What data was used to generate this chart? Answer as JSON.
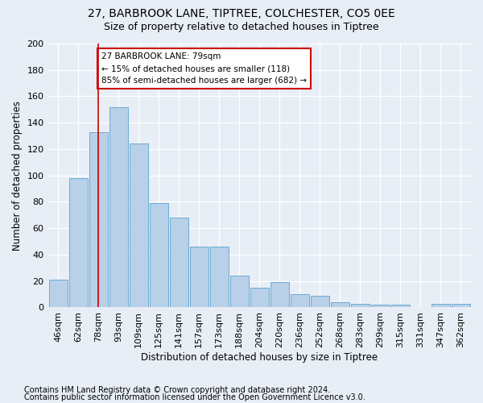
{
  "title1": "27, BARBROOK LANE, TIPTREE, COLCHESTER, CO5 0EE",
  "title2": "Size of property relative to detached houses in Tiptree",
  "xlabel": "Distribution of detached houses by size in Tiptree",
  "ylabel": "Number of detached properties",
  "categories": [
    "46sqm",
    "62sqm",
    "78sqm",
    "93sqm",
    "109sqm",
    "125sqm",
    "141sqm",
    "157sqm",
    "173sqm",
    "188sqm",
    "204sqm",
    "220sqm",
    "236sqm",
    "252sqm",
    "268sqm",
    "283sqm",
    "299sqm",
    "315sqm",
    "331sqm",
    "347sqm",
    "362sqm"
  ],
  "values": [
    21,
    98,
    133,
    152,
    124,
    79,
    68,
    46,
    46,
    24,
    15,
    19,
    10,
    9,
    4,
    3,
    2,
    2,
    0,
    3,
    3
  ],
  "bar_color": "#b8d0e8",
  "bar_edge_color": "#6aaad4",
  "vline_x_index": 2,
  "vline_color": "#cc0000",
  "annotation_text": "27 BARBROOK LANE: 79sqm\n← 15% of detached houses are smaller (118)\n85% of semi-detached houses are larger (682) →",
  "annotation_box_color": "#ffffff",
  "annotation_box_edge": "#cc0000",
  "footnote1": "Contains HM Land Registry data © Crown copyright and database right 2024.",
  "footnote2": "Contains public sector information licensed under the Open Government Licence v3.0.",
  "ylim": [
    0,
    200
  ],
  "yticks": [
    0,
    20,
    40,
    60,
    80,
    100,
    120,
    140,
    160,
    180,
    200
  ],
  "bg_color": "#e8eef6",
  "grid_color": "#ffffff",
  "title_fontsize": 10,
  "subtitle_fontsize": 9,
  "axis_label_fontsize": 8.5,
  "tick_fontsize": 8,
  "annot_fontsize": 7.5,
  "footnote_fontsize": 7
}
